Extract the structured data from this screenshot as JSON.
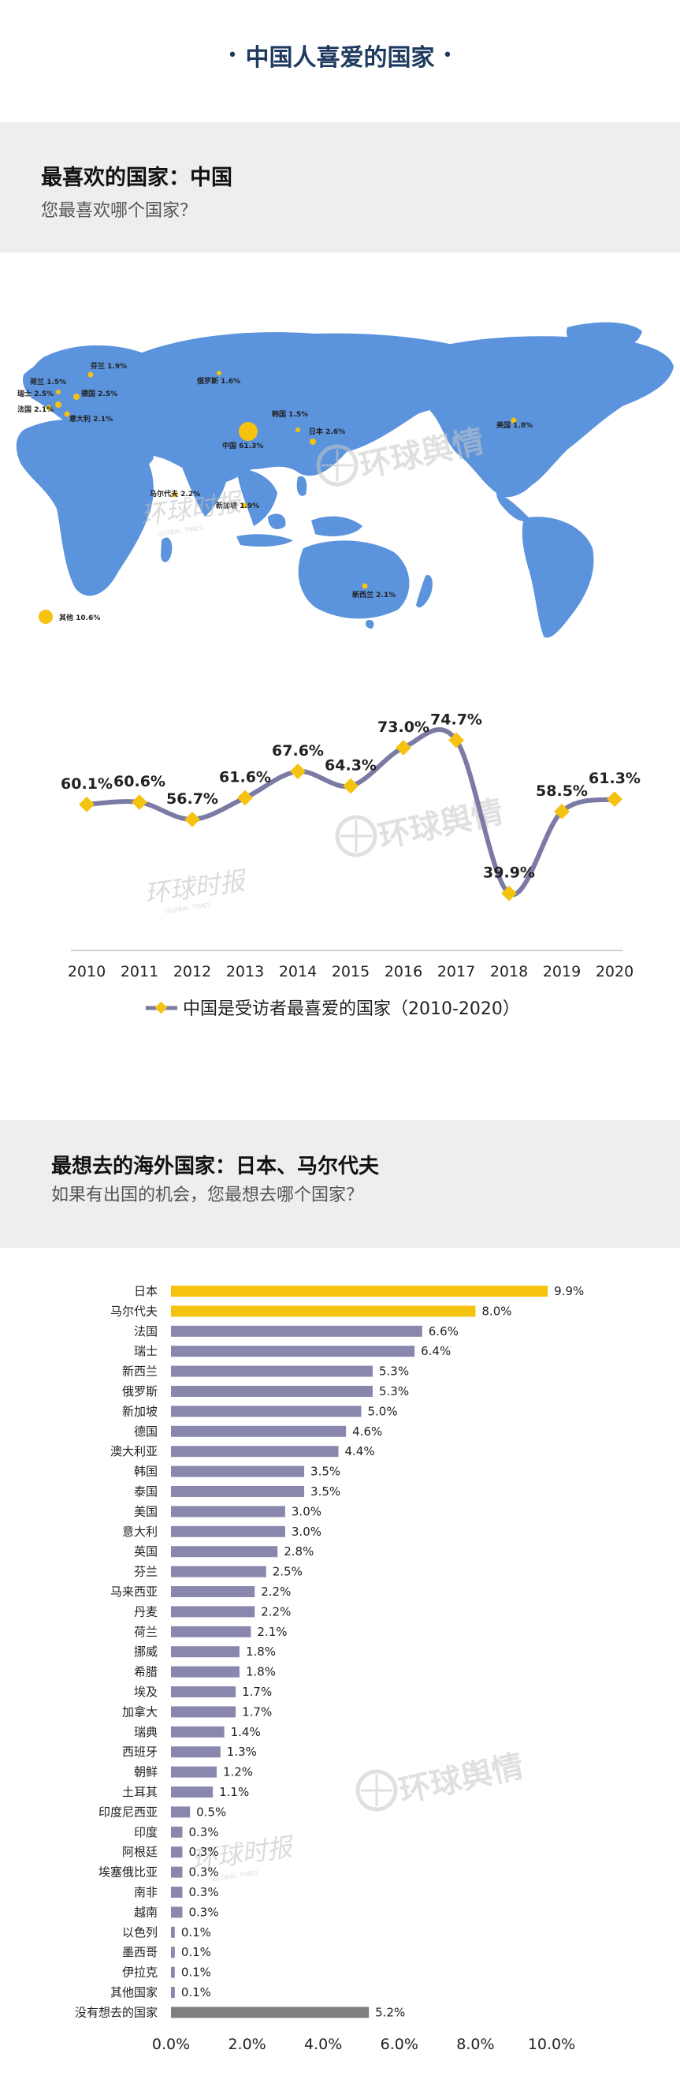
{
  "page_title": "中国人喜爱的国家",
  "title_dot": "•",
  "section1": {
    "heading": "最喜欢的国家：中国",
    "subtitle": "您最喜欢哪个国家？"
  },
  "map_labels": [
    {
      "id": "netherlands",
      "name": "荷兰",
      "value": "1.5%"
    },
    {
      "id": "finland",
      "name": "芬兰",
      "value": "1.9%"
    },
    {
      "id": "russia",
      "name": "俄罗斯",
      "value": "1.6%"
    },
    {
      "id": "switzerland",
      "name": "瑞士",
      "value": "2.5%"
    },
    {
      "id": "germany",
      "name": "德国",
      "value": "2.5%"
    },
    {
      "id": "france",
      "name": "法国",
      "value": "2.1%"
    },
    {
      "id": "italy",
      "name": "意大利",
      "value": "2.1%"
    },
    {
      "id": "korea",
      "name": "韩国",
      "value": "1.5%"
    },
    {
      "id": "japan",
      "name": "日本",
      "value": "2.6%"
    },
    {
      "id": "china",
      "name": "中国",
      "value": "61.3%"
    },
    {
      "id": "usa",
      "name": "美国",
      "value": "1.8%"
    },
    {
      "id": "maldives",
      "name": "马尔代夫",
      "value": "2.2%"
    },
    {
      "id": "singapore",
      "name": "新加坡",
      "value": "1.9%"
    },
    {
      "id": "newzealand",
      "name": "新西兰",
      "value": "2.1%"
    },
    {
      "id": "others",
      "name": "其他",
      "value": "10.6%"
    }
  ],
  "watermark": {
    "text": "环球舆情",
    "brand": "环球时报",
    "brand_en": "GLOBAL TIMES"
  },
  "chart_data": [
    {
      "type": "line",
      "x": [
        "2010",
        "2011",
        "2012",
        "2013",
        "2014",
        "2015",
        "2016",
        "2017",
        "2018",
        "2019",
        "2020"
      ],
      "series": [
        {
          "name": "中国是受访者最喜爱的国家（2010-2020）",
          "values": [
            60.1,
            60.6,
            56.7,
            61.6,
            67.6,
            64.3,
            73.0,
            74.7,
            39.9,
            58.5,
            61.3
          ]
        }
      ],
      "value_labels": [
        "60.1%",
        "60.6%",
        "56.7%",
        "61.6%",
        "67.6%",
        "64.3%",
        "73.0%",
        "74.7%",
        "39.9%",
        "58.5%",
        "61.3%"
      ],
      "colors": {
        "line": "#7b7aa5",
        "marker": "#f5c210"
      }
    },
    {
      "type": "bar",
      "orientation": "horizontal",
      "categories": [
        "日本",
        "马尔代夫",
        "法国",
        "瑞士",
        "新西兰",
        "俄罗斯",
        "新加坡",
        "德国",
        "澳大利亚",
        "韩国",
        "泰国",
        "美国",
        "意大利",
        "英国",
        "芬兰",
        "马来西亚",
        "丹麦",
        "荷兰",
        "挪威",
        "希腊",
        "埃及",
        "加拿大",
        "瑞典",
        "西班牙",
        "朝鲜",
        "土耳其",
        "印度尼西亚",
        "印度",
        "阿根廷",
        "埃塞俄比亚",
        "南非",
        "越南",
        "以色列",
        "墨西哥",
        "伊拉克",
        "其他国家",
        "没有想去的国家"
      ],
      "values": [
        9.9,
        8.0,
        6.6,
        6.4,
        5.3,
        5.3,
        5.0,
        4.6,
        4.4,
        3.5,
        3.5,
        3.0,
        3.0,
        2.8,
        2.5,
        2.2,
        2.2,
        2.1,
        1.8,
        1.8,
        1.7,
        1.7,
        1.4,
        1.3,
        1.2,
        1.1,
        0.5,
        0.3,
        0.3,
        0.3,
        0.3,
        0.3,
        0.1,
        0.1,
        0.1,
        0.1,
        5.2
      ],
      "value_labels": [
        "9.9%",
        "8.0%",
        "6.6%",
        "6.4%",
        "5.3%",
        "5.3%",
        "5.0%",
        "4.6%",
        "4.4%",
        "3.5%",
        "3.5%",
        "3.0%",
        "3.0%",
        "2.8%",
        "2.5%",
        "2.2%",
        "2.2%",
        "2.1%",
        "1.8%",
        "1.8%",
        "1.7%",
        "1.7%",
        "1.4%",
        "1.3%",
        "1.2%",
        "1.1%",
        "0.5%",
        "0.3%",
        "0.3%",
        "0.3%",
        "0.3%",
        "0.3%",
        "0.1%",
        "0.1%",
        "0.1%",
        "0.1%",
        "5.2%"
      ],
      "xticks": [
        "0.0%",
        "2.0%",
        "4.0%",
        "6.0%",
        "8.0%",
        "10.0%"
      ],
      "xlim": [
        0,
        10
      ],
      "colors": {
        "highlight": "#f5c210",
        "default": "#8a87ae",
        "none": "#7f7f7f"
      }
    }
  ],
  "section2": {
    "heading": "最想去的海外国家：日本、马尔代夫",
    "subtitle": "如果有出国的机会，您最想去哪个国家？"
  },
  "colors": {
    "title": "#1e3a5f",
    "map": "#5b93dc",
    "marker": "#f5c210",
    "header_bg": "#eeeeee"
  }
}
